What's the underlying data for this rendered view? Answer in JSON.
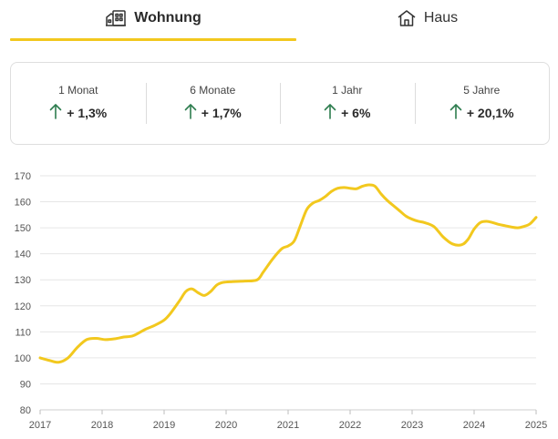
{
  "tabs": [
    {
      "label": "Wohnung",
      "icon": "apartment-building-icon",
      "active": true
    },
    {
      "label": "Haus",
      "icon": "house-icon",
      "active": false
    }
  ],
  "colors": {
    "accent": "#f2c81e",
    "up_arrow": "#2e7d4f"
  },
  "stats": [
    {
      "label": "1 Monat",
      "value": "+ 1,3%",
      "trend_icon": "arrow-up-icon"
    },
    {
      "label": "6 Monate",
      "value": "+ 1,7%",
      "trend_icon": "arrow-up-icon"
    },
    {
      "label": "1 Jahr",
      "value": "+ 6%",
      "trend_icon": "arrow-up-icon"
    },
    {
      "label": "5 Jahre",
      "value": "+ 20,1%",
      "trend_icon": "arrow-up-icon"
    }
  ],
  "chart_data": {
    "type": "line",
    "title": "",
    "xlabel": "",
    "ylabel": "",
    "xlim": [
      2017,
      2025
    ],
    "ylim": [
      80,
      170
    ],
    "xticks": [
      "2017",
      "2018",
      "2019",
      "2020",
      "2021",
      "2022",
      "2023",
      "2024",
      "2025"
    ],
    "yticks": [
      "80",
      "90",
      "100",
      "110",
      "120",
      "130",
      "140",
      "150",
      "160",
      "170"
    ],
    "grid": true,
    "legend": "none",
    "series": [
      {
        "color": "#f2c81e",
        "x": [
          2017.0,
          2017.15,
          2017.3,
          2017.45,
          2017.6,
          2017.75,
          2017.9,
          2018.05,
          2018.2,
          2018.35,
          2018.5,
          2018.7,
          2018.85,
          2019.0,
          2019.1,
          2019.25,
          2019.35,
          2019.45,
          2019.55,
          2019.65,
          2019.75,
          2019.85,
          2019.95,
          2020.1,
          2020.3,
          2020.5,
          2020.6,
          2020.75,
          2020.9,
          2021.0,
          2021.1,
          2021.2,
          2021.3,
          2021.4,
          2021.5,
          2021.6,
          2021.7,
          2021.8,
          2021.9,
          2022.0,
          2022.1,
          2022.2,
          2022.3,
          2022.4,
          2022.5,
          2022.6,
          2022.7,
          2022.8,
          2022.9,
          2023.0,
          2023.1,
          2023.2,
          2023.35,
          2023.5,
          2023.65,
          2023.8,
          2023.9,
          2024.0,
          2024.1,
          2024.2,
          2024.3,
          2024.4,
          2024.5,
          2024.6,
          2024.7,
          2024.8,
          2024.9,
          2025.0
        ],
        "y": [
          100,
          99,
          98.3,
          100,
          104,
          107,
          107.5,
          107,
          107.3,
          108,
          108.5,
          111,
          112.5,
          114.5,
          117,
          122,
          125.5,
          126.5,
          125,
          124,
          125.5,
          128,
          129,
          129.3,
          129.5,
          130,
          133,
          138,
          142,
          143,
          145,
          151,
          157,
          159.5,
          160.5,
          162,
          164,
          165.2,
          165.5,
          165.2,
          165,
          166,
          166.5,
          166,
          163,
          160.5,
          158.5,
          156.5,
          154.5,
          153.3,
          152.5,
          152,
          150.5,
          146.5,
          143.8,
          143.5,
          145.5,
          149.5,
          152,
          152.5,
          152,
          151.3,
          150.8,
          150.3,
          150,
          150.5,
          151.5,
          154
        ]
      }
    ]
  }
}
